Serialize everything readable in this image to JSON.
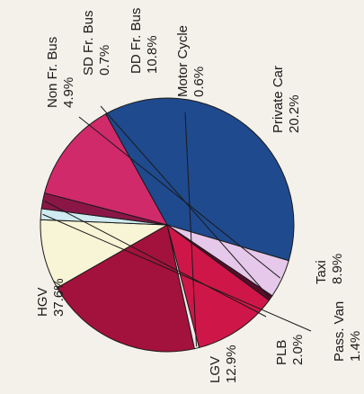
{
  "chart_data": {
    "type": "pie",
    "slices": [
      {
        "label": "HGV",
        "value": 37.6,
        "value_label": "37.6%",
        "color": "#1f4a8e"
      },
      {
        "label": "Non Fr. Bus",
        "value": 4.9,
        "value_label": "4.9%",
        "color": "#e6c8ea"
      },
      {
        "label": "SD Fr. Bus",
        "value": 0.7,
        "value_label": "0.7%",
        "color": "#5a0c2a"
      },
      {
        "label": "DD Fr. Bus",
        "value": 10.8,
        "value_label": "10.8%",
        "color": "#cf1648"
      },
      {
        "label": "Motor Cycle",
        "value": 0.6,
        "value_label": "0.6%",
        "color": "#f1e6ea"
      },
      {
        "label": "Private Car",
        "value": 20.2,
        "value_label": "20.2%",
        "color": "#a3123c"
      },
      {
        "label": "Taxi",
        "value": 8.9,
        "value_label": "8.9%",
        "color": "#f8f4d6"
      },
      {
        "label": "Pass. Van",
        "value": 1.4,
        "value_label": "1.4%",
        "color": "#cfeaf0"
      },
      {
        "label": "PLB",
        "value": 2.0,
        "value_label": "2.0%",
        "color": "#8a1648"
      },
      {
        "label": "LGV",
        "value": 12.9,
        "value_label": "12.9%",
        "color": "#d12a6a"
      }
    ]
  }
}
